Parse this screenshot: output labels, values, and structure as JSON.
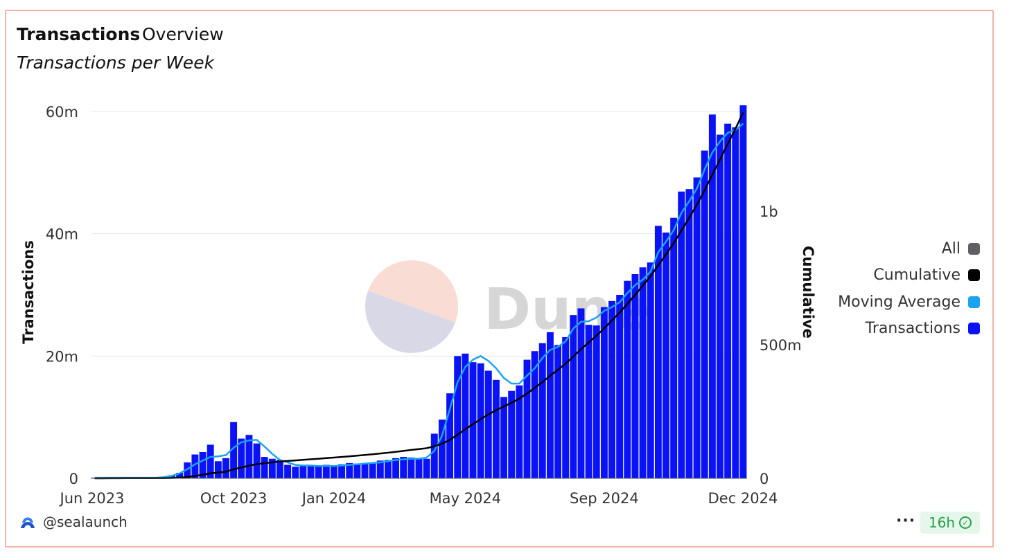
{
  "header": {
    "active_tab": "Transactions",
    "other_tab": "Overview",
    "subtitle": "Transactions per Week"
  },
  "legend": [
    {
      "label": "All",
      "color": "#5f5f64"
    },
    {
      "label": "Cumulative",
      "color": "#000000"
    },
    {
      "label": "Moving Average",
      "color": "#1aa3f0"
    },
    {
      "label": "Transactions",
      "color": "#0a13f5"
    }
  ],
  "footer": {
    "author": "@sealaunch",
    "more": "···",
    "refresh": "16h"
  },
  "watermark": "Dune",
  "chart_data": {
    "type": "bar",
    "title": "Transactions per Week",
    "ylabel": "Transactions",
    "y2label": "Cumulative",
    "ylim": [
      0,
      60000000
    ],
    "y2lim": [
      0,
      1400000000
    ],
    "yticks": [
      "0",
      "20m",
      "40m",
      "60m"
    ],
    "y2ticks": [
      "0",
      "500m",
      "1b"
    ],
    "xticks": [
      "Jun 2023",
      "Oct 2023",
      "Jan 2024",
      "May 2024",
      "Sep 2024",
      "Dec 2024"
    ],
    "grid": true,
    "legend_position": "right",
    "series": [
      {
        "name": "Transactions",
        "type": "bar",
        "color": "#0a13f5",
        "values": [
          0.1,
          0.1,
          0.1,
          0.1,
          0.1,
          0.1,
          0.1,
          0.1,
          0.1,
          0.1,
          0.5,
          0.9,
          2.6,
          3.9,
          4.3,
          5.5,
          2.8,
          3.3,
          9.2,
          6.5,
          7.1,
          5.7,
          3.5,
          3.2,
          3,
          2.2,
          1.9,
          2.1,
          2.2,
          2.1,
          2.2,
          2.1,
          2.3,
          2.5,
          2.4,
          2.5,
          2.6,
          2.9,
          3,
          3.3,
          3.5,
          3.4,
          3.3,
          3.2,
          7.3,
          9.6,
          13.9,
          20,
          20.4,
          19,
          18.8,
          17.6,
          16.1,
          13.3,
          14.3,
          15.2,
          19.4,
          20.8,
          22.1,
          23.9,
          21.8,
          23.1,
          26.7,
          27.8,
          25.1,
          25,
          28,
          29,
          30,
          32.3,
          33.4,
          34.5,
          35.3,
          41.3,
          40.2,
          42.6,
          46.9,
          47.3,
          49.2,
          53.6,
          59.5,
          56.2,
          58,
          57.4,
          61
        ]
      },
      {
        "name": "Moving Average",
        "type": "line",
        "color": "#1aa3f0",
        "values": [
          0.1,
          0.1,
          0.1,
          0.1,
          0.1,
          0.1,
          0.1,
          0.1,
          0.1,
          0.2,
          0.4,
          0.8,
          1.5,
          2.3,
          2.9,
          3.5,
          3.6,
          3.8,
          5,
          5.9,
          6.2,
          6.3,
          5.2,
          4,
          3,
          2.6,
          2.2,
          2.1,
          2.1,
          2,
          2,
          2,
          2.1,
          2.2,
          2.3,
          2.4,
          2.5,
          2.6,
          2.8,
          3,
          3.1,
          3.2,
          3.2,
          3.4,
          4.5,
          7,
          11.3,
          15.7,
          18.2,
          19.4,
          20,
          19.2,
          18,
          16.4,
          15.5,
          15.5,
          16.8,
          18,
          19.7,
          21,
          21.5,
          22.4,
          24.5,
          25.6,
          25.7,
          26.3,
          27.4,
          28,
          28.8,
          30.3,
          31.6,
          32.5,
          33.8,
          37,
          38.7,
          40.6,
          43.4,
          45.3,
          47.4,
          50.5,
          53.3,
          55.1,
          56.5,
          57,
          58
        ]
      },
      {
        "name": "Cumulative",
        "type": "line",
        "color": "#000000",
        "values": [
          0,
          0.1,
          0.2,
          0.3,
          0.4,
          0.5,
          0.6,
          0.7,
          0.8,
          0.9,
          1.4,
          2.3,
          4.9,
          8.8,
          13.1,
          18.6,
          21.4,
          24.7,
          33.9,
          40.4,
          47.5,
          53.2,
          56.7,
          59.9,
          62.9,
          65.1,
          67,
          69.1,
          71.3,
          73.4,
          75.6,
          77.7,
          80,
          82.5,
          84.9,
          87.4,
          90,
          92.9,
          95.9,
          99.2,
          102.7,
          106.1,
          109.4,
          112.6,
          119.9,
          129.5,
          143.4,
          163.4,
          183.8,
          202.8,
          221.6,
          239.2,
          255.3,
          268.6,
          282.9,
          298.1,
          317.5,
          338.3,
          360.4,
          384.3,
          406.1,
          429.2,
          455.9,
          483.7,
          508.8,
          533.8,
          561.8,
          590.8,
          620.8,
          653.1,
          686.5,
          721,
          756.3,
          797.6,
          837.8,
          880.4,
          927.3,
          974.6,
          1023.8,
          1077.4,
          1136.9,
          1193.1,
          1251.1,
          1308.5,
          1369.5
        ]
      }
    ],
    "cumulative_unit": "millions"
  }
}
